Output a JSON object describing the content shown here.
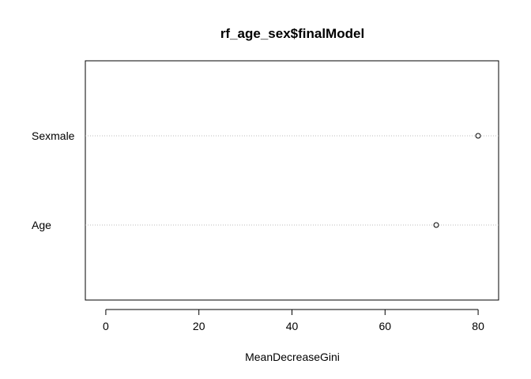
{
  "chart_data": {
    "type": "scatter",
    "title": "rf_age_sex$finalModel",
    "xlabel": "MeanDecreaseGini",
    "ylabel": "",
    "xlim": [
      -4.4,
      84.4
    ],
    "x_ticks": [
      "0",
      "20",
      "40",
      "60",
      "80"
    ],
    "x_tick_values": [
      0,
      20,
      40,
      60,
      80
    ],
    "categories": [
      "Age",
      "Sexmale"
    ],
    "values": [
      71,
      80
    ],
    "grid": "dotted horizontal guide lines per category",
    "legend": "none"
  }
}
